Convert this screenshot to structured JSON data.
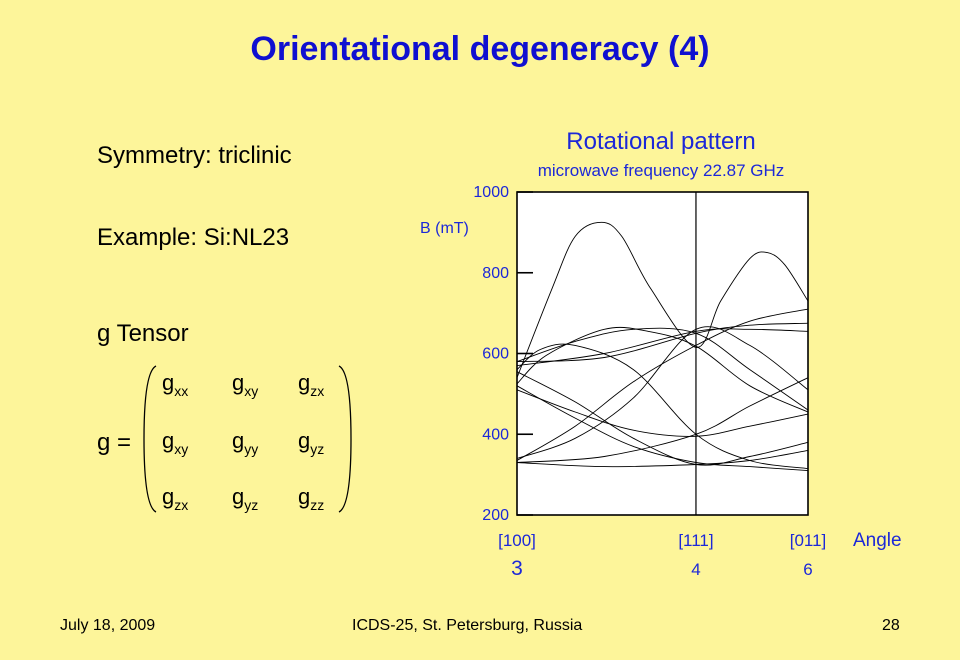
{
  "slide": {
    "title": "Orientational degeneracy (4)",
    "symmetry": "Symmetry: triclinic",
    "example": "Example: Si:NL23",
    "g_tensor_label": "g Tensor",
    "g_equals": "g =",
    "matrix": [
      [
        {
          "base": "g",
          "sub": "xx"
        },
        {
          "base": "g",
          "sub": "xy"
        },
        {
          "base": "g",
          "sub": "zx"
        }
      ],
      [
        {
          "base": "g",
          "sub": "xy"
        },
        {
          "base": "g",
          "sub": "yy"
        },
        {
          "base": "g",
          "sub": "yz"
        }
      ],
      [
        {
          "base": "g",
          "sub": "zx"
        },
        {
          "base": "g",
          "sub": "yz"
        },
        {
          "base": "g",
          "sub": "zz"
        }
      ]
    ]
  },
  "chart_data": {
    "type": "line",
    "title": "Rotational pattern",
    "subtitle": "microwave frequency 22.87 GHz",
    "ylabel": "B (mT)",
    "xlabel": "Angle",
    "ylim": [
      200,
      1000
    ],
    "yticks": [
      200,
      400,
      600,
      800,
      1000
    ],
    "xlim": [
      0,
      1
    ],
    "xticks": [
      {
        "pos": 0.0,
        "label": "[100]",
        "count": "3"
      },
      {
        "pos": 0.615,
        "label": "[111]",
        "count": "4"
      },
      {
        "pos": 1.0,
        "label": "[011]",
        "count": "6"
      }
    ],
    "vline_at": 0.615,
    "series": [
      {
        "values": [
          [
            0,
            540
          ],
          [
            0.12,
            760
          ],
          [
            0.2,
            890
          ],
          [
            0.29,
            925
          ],
          [
            0.36,
            890
          ],
          [
            0.46,
            760
          ],
          [
            0.615,
            615
          ],
          [
            0.7,
            730
          ],
          [
            0.8,
            835
          ],
          [
            0.86,
            850
          ],
          [
            0.92,
            820
          ],
          [
            1.0,
            730
          ]
        ]
      },
      {
        "values": [
          [
            0,
            525
          ],
          [
            0.1,
            595
          ],
          [
            0.3,
            660
          ],
          [
            0.45,
            655
          ],
          [
            0.615,
            618
          ],
          [
            0.8,
            520
          ],
          [
            1.0,
            455
          ]
        ]
      },
      {
        "values": [
          [
            0,
            560
          ],
          [
            0.08,
            610
          ],
          [
            0.2,
            620
          ],
          [
            0.4,
            560
          ],
          [
            0.615,
            400
          ],
          [
            0.8,
            335
          ],
          [
            1.0,
            315
          ]
        ]
      },
      {
        "values": [
          [
            0,
            340
          ],
          [
            0.2,
            390
          ],
          [
            0.4,
            490
          ],
          [
            0.615,
            660
          ],
          [
            0.8,
            620
          ],
          [
            1.0,
            510
          ]
        ]
      },
      {
        "values": [
          [
            0,
            330
          ],
          [
            0.3,
            345
          ],
          [
            0.615,
            400
          ],
          [
            0.8,
            470
          ],
          [
            1.0,
            540
          ]
        ]
      },
      {
        "values": [
          [
            0,
            335
          ],
          [
            0.2,
            420
          ],
          [
            0.4,
            530
          ],
          [
            0.615,
            620
          ],
          [
            0.8,
            680
          ],
          [
            1.0,
            710
          ]
        ]
      },
      {
        "values": [
          [
            0,
            580
          ],
          [
            0.3,
            590
          ],
          [
            0.615,
            650
          ],
          [
            0.8,
            670
          ],
          [
            1.0,
            675
          ]
        ]
      },
      {
        "values": [
          [
            0,
            570
          ],
          [
            0.3,
            600
          ],
          [
            0.615,
            655
          ],
          [
            0.8,
            660
          ],
          [
            1.0,
            655
          ]
        ]
      },
      {
        "values": [
          [
            0,
            520
          ],
          [
            0.2,
            440
          ],
          [
            0.4,
            370
          ],
          [
            0.615,
            330
          ],
          [
            0.8,
            320
          ],
          [
            1.0,
            310
          ]
        ]
      },
      {
        "values": [
          [
            0,
            510
          ],
          [
            0.2,
            455
          ],
          [
            0.4,
            410
          ],
          [
            0.615,
            395
          ],
          [
            0.8,
            420
          ],
          [
            1.0,
            450
          ]
        ]
      },
      {
        "values": [
          [
            0,
            555
          ],
          [
            0.2,
            480
          ],
          [
            0.4,
            390
          ],
          [
            0.615,
            325
          ],
          [
            0.8,
            345
          ],
          [
            1.0,
            380
          ]
        ]
      },
      {
        "values": [
          [
            0,
            330
          ],
          [
            0.3,
            320
          ],
          [
            0.615,
            325
          ],
          [
            0.8,
            335
          ],
          [
            1.0,
            360
          ]
        ]
      },
      {
        "values": [
          [
            0,
            580
          ],
          [
            0.2,
            630
          ],
          [
            0.4,
            660
          ],
          [
            0.615,
            650
          ],
          [
            0.8,
            560
          ],
          [
            1.0,
            460
          ]
        ]
      }
    ]
  },
  "footer": {
    "date": "July 18, 2009",
    "conference": "ICDS-25, St. Petersburg, Russia",
    "page": "28"
  }
}
